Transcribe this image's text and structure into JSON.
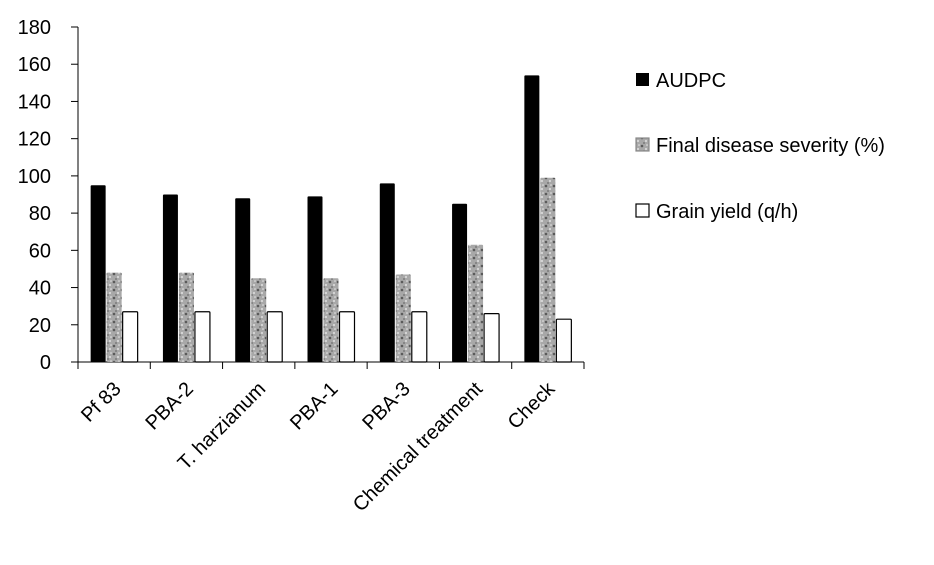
{
  "chart_data": {
    "type": "bar",
    "categories": [
      "Pf 83",
      "PBA-2",
      "T. harzianum",
      "PBA-1",
      "PBA-3",
      "Chemical treatment",
      "Check"
    ],
    "series": [
      {
        "name": "AUDPC",
        "values": [
          95,
          90,
          88,
          89,
          96,
          85,
          154
        ],
        "color": "#000000",
        "pattern": "solid"
      },
      {
        "name": "Final disease severity (%)",
        "values": [
          48,
          48,
          45,
          45,
          47,
          63,
          99
        ],
        "color": "#9a9a9a",
        "pattern": "speckled-gray"
      },
      {
        "name": "Grain yield (q/h)",
        "values": [
          27,
          27,
          27,
          27,
          27,
          26,
          23
        ],
        "color": "#ffffff",
        "pattern": "outline"
      }
    ],
    "y_ticks": [
      "0",
      "20",
      "40",
      "60",
      "80",
      "100",
      "120",
      "140",
      "160",
      "180"
    ],
    "ylim": [
      0,
      180
    ],
    "xlabel": "",
    "ylabel": "",
    "title": "",
    "grid": false,
    "legend_position": "right"
  }
}
